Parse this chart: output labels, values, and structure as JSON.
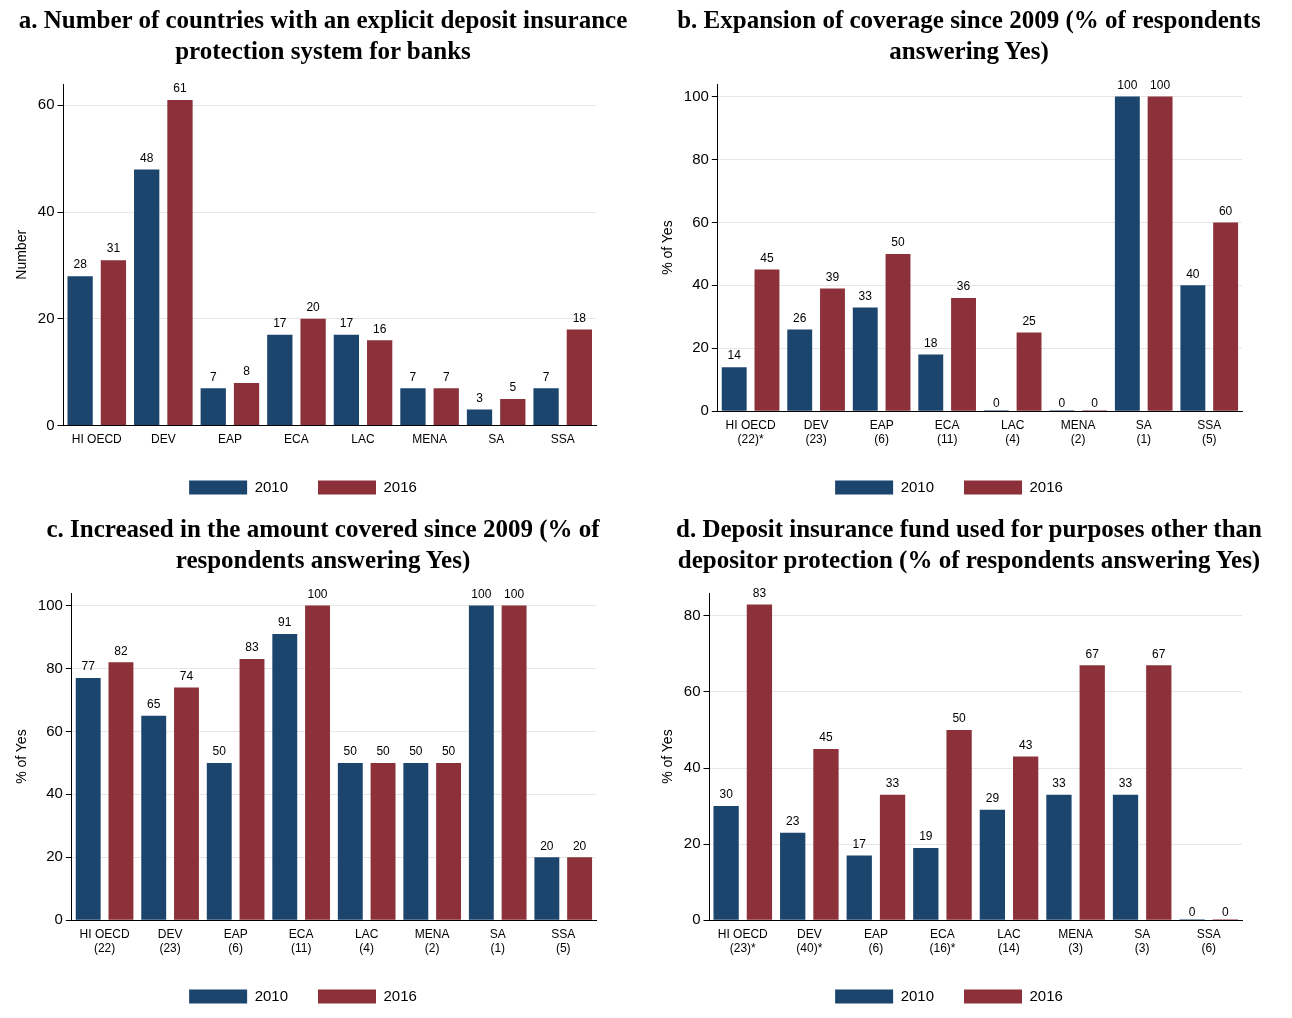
{
  "chart_data": [
    {
      "type": "bar",
      "title": "a. Number of countries with an explicit deposit insurance protection system for banks",
      "ylabel": "Number",
      "categories": [
        "HI OECD",
        "DEV",
        "EAP",
        "ECA",
        "LAC",
        "MENA",
        "SA",
        "SSA"
      ],
      "series": [
        {
          "name": "2010",
          "color": "#1c456e",
          "values": [
            28,
            48,
            7,
            17,
            17,
            7,
            3,
            7
          ]
        },
        {
          "name": "2016",
          "color": "#8c3139",
          "values": [
            31,
            61,
            8,
            20,
            16,
            7,
            5,
            18
          ]
        }
      ],
      "ylim": [
        0,
        64
      ],
      "yticks": [
        0,
        20,
        40,
        60
      ],
      "grid": "y",
      "legend": "bottom",
      "data_labels": true
    },
    {
      "type": "bar",
      "title": "b.  Expansion of coverage since 2009 (% of respondents answering Yes)",
      "ylabel": "% of Yes",
      "categories": [
        "HI OECD\n(22)*",
        "DEV\n(23)",
        "EAP\n(6)",
        "ECA\n(11)",
        "LAC\n(4)",
        "MENA\n(2)",
        "SA\n(1)",
        "SSA\n(5)"
      ],
      "series": [
        {
          "name": "2010",
          "color": "#1c456e",
          "values": [
            14,
            26,
            33,
            18,
            0,
            0,
            100,
            40
          ]
        },
        {
          "name": "2016",
          "color": "#8c3139",
          "values": [
            45,
            39,
            50,
            36,
            25,
            0,
            100,
            60
          ]
        }
      ],
      "ylim": [
        0,
        104
      ],
      "yticks": [
        0,
        20,
        40,
        60,
        80,
        100
      ],
      "grid": "y",
      "legend": "bottom",
      "data_labels": true
    },
    {
      "type": "bar",
      "title": "c. Increased in the amount covered since 2009 (% of respondents answering Yes)",
      "ylabel": "% of Yes",
      "categories": [
        "HI OECD\n(22)",
        "DEV\n(23)",
        "EAP\n(6)",
        "ECA\n(11)",
        "LAC\n(4)",
        "MENA\n(2)",
        "SA\n(1)",
        "SSA\n(5)"
      ],
      "series": [
        {
          "name": "2010",
          "color": "#1c456e",
          "values": [
            77,
            65,
            50,
            91,
            50,
            50,
            100,
            20
          ]
        },
        {
          "name": "2016",
          "color": "#8c3139",
          "values": [
            82,
            74,
            83,
            100,
            50,
            50,
            100,
            20
          ]
        }
      ],
      "ylim": [
        0,
        104
      ],
      "yticks": [
        0,
        20,
        40,
        60,
        80,
        100
      ],
      "grid": "y",
      "legend": "bottom",
      "data_labels": true
    },
    {
      "type": "bar",
      "title": "d.  Deposit insurance fund used for purposes other than depositor protection (% of respondents answering Yes)",
      "ylabel": "% of Yes",
      "categories": [
        "HI OECD\n(23)*",
        "DEV\n(40)*",
        "EAP\n(6)",
        "ECA\n(16)*",
        "LAC\n(14)",
        "MENA\n(3)",
        "SA\n(3)",
        "SSA\n(6)"
      ],
      "series": [
        {
          "name": "2010",
          "color": "#1c456e",
          "values": [
            30,
            23,
            17,
            19,
            29,
            33,
            33,
            0
          ]
        },
        {
          "name": "2016",
          "color": "#8c3139",
          "values": [
            83,
            45,
            33,
            50,
            43,
            67,
            67,
            0
          ]
        }
      ],
      "ylim": [
        0,
        86
      ],
      "yticks": [
        0,
        20,
        40,
        60,
        80
      ],
      "grid": "y",
      "legend": "bottom",
      "data_labels": true
    }
  ]
}
